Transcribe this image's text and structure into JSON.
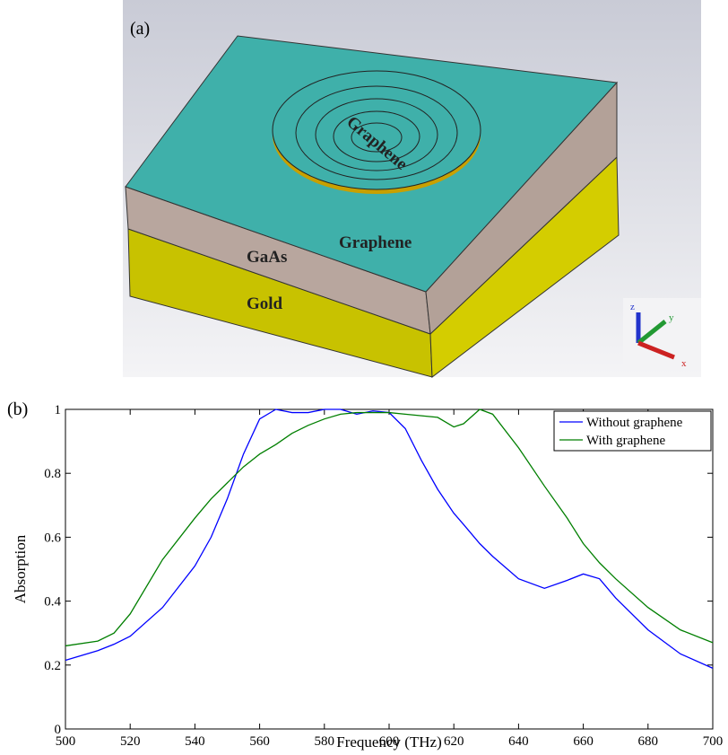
{
  "diagram": {
    "panel_label": "(a)",
    "labels": [
      "Graphene",
      "Graphene",
      "GaAs",
      "Gold"
    ],
    "axes": [
      "z",
      "y",
      "x"
    ]
  },
  "chart_data": {
    "type": "line",
    "panel_label": "(b)",
    "x_label": "Frequency (THz)",
    "y_label": "Absorption",
    "x": [
      500,
      510,
      515,
      520,
      530,
      540,
      545,
      550,
      555,
      560,
      565,
      570,
      575,
      580,
      585,
      590,
      595,
      600,
      605,
      610,
      615,
      620,
      623,
      628,
      632,
      640,
      648,
      655,
      660,
      665,
      670,
      680,
      690,
      700
    ],
    "series": [
      {
        "name": "Without graphene",
        "color": "#0000ff",
        "values": [
          0.215,
          0.245,
          0.265,
          0.29,
          0.38,
          0.51,
          0.6,
          0.72,
          0.86,
          0.97,
          1.0,
          0.99,
          0.99,
          1.0,
          1.0,
          0.985,
          0.995,
          0.99,
          0.94,
          0.84,
          0.75,
          0.675,
          0.64,
          0.58,
          0.54,
          0.47,
          0.44,
          0.465,
          0.485,
          0.47,
          0.41,
          0.31,
          0.235,
          0.19
        ]
      },
      {
        "name": "With graphene",
        "color": "#007f00",
        "values": [
          0.26,
          0.275,
          0.3,
          0.36,
          0.53,
          0.66,
          0.72,
          0.77,
          0.82,
          0.86,
          0.89,
          0.925,
          0.95,
          0.97,
          0.985,
          0.99,
          0.99,
          0.99,
          0.985,
          0.98,
          0.975,
          0.945,
          0.955,
          1.0,
          0.985,
          0.88,
          0.76,
          0.66,
          0.58,
          0.52,
          0.47,
          0.38,
          0.31,
          0.27
        ]
      }
    ],
    "xlim": [
      500,
      700
    ],
    "ylim": [
      0,
      1
    ],
    "xticks": [
      500,
      520,
      540,
      560,
      580,
      600,
      620,
      640,
      660,
      680,
      700
    ],
    "yticks": [
      0,
      0.2,
      0.4,
      0.6,
      0.8,
      1
    ],
    "legend": "top-right"
  }
}
